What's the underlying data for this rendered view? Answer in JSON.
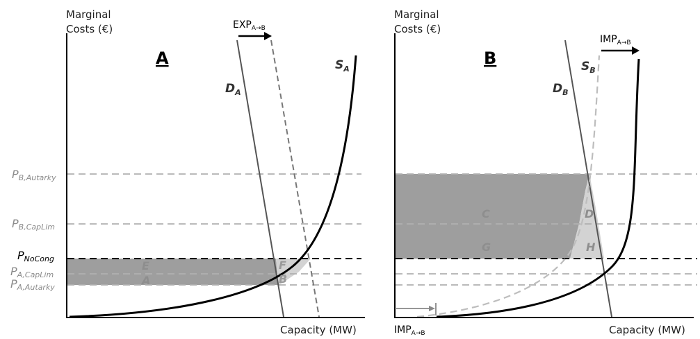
{
  "axes": {
    "y_label_line1": "Marginal",
    "y_label_line2": "Costs (€)",
    "x_label": "Capacity (MW)"
  },
  "panels": {
    "a": {
      "title": "A",
      "supply": "S",
      "supply_sub": "A",
      "demand": "D",
      "demand_sub": "A",
      "flow_main": "EXP",
      "flow_sub": "A→B"
    },
    "b": {
      "title": "B",
      "supply": "S",
      "supply_sub": "B",
      "demand": "D",
      "demand_sub": "B",
      "flow_main": "IMP",
      "flow_sub": "A→B"
    }
  },
  "price_levels": [
    {
      "main": "P",
      "sub": "B,Autarky"
    },
    {
      "main": "P",
      "sub": "B,CapLim"
    },
    {
      "main": "P",
      "sub": "NoCong"
    },
    {
      "main": "P",
      "sub": "A,CapLim"
    },
    {
      "main": "P",
      "sub": "A,Autarky"
    }
  ],
  "areas": {
    "a": [
      "E",
      "F",
      "A",
      "B"
    ],
    "b": [
      "C",
      "D",
      "G",
      "H"
    ]
  },
  "colors": {
    "dark_area": "#9e9e9e",
    "light_area": "#d3d3d3",
    "grid_dash": "#b0b0b0"
  }
}
